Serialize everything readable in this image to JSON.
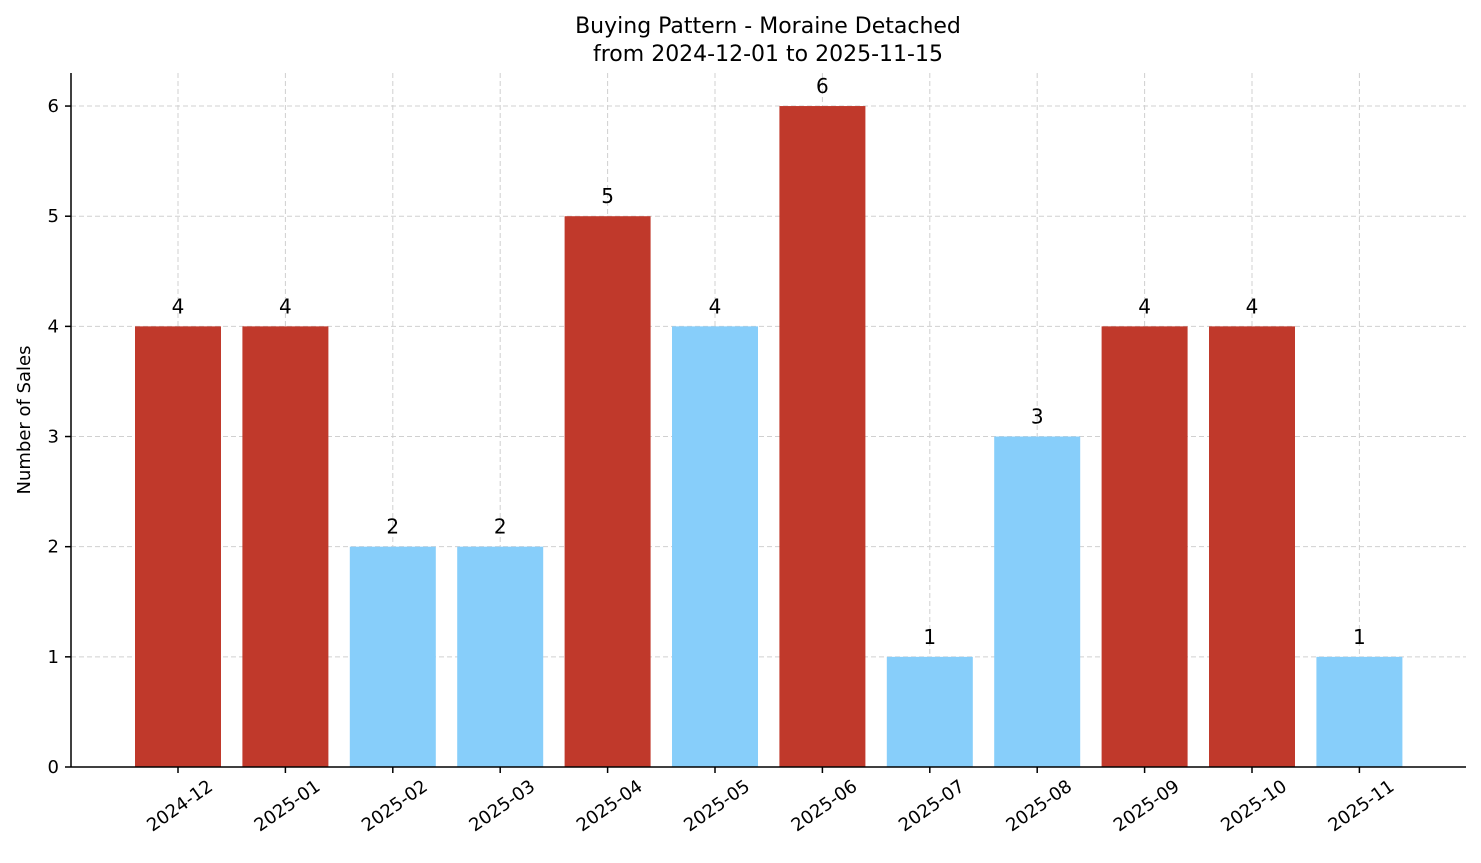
{
  "chart_data": {
    "type": "bar",
    "title": "Buying Pattern - Moraine Detached",
    "subtitle": "from 2024-12-01 to 2025-11-15",
    "xlabel": "",
    "ylabel": "Number of Sales",
    "categories": [
      "2024-12",
      "2025-01",
      "2025-02",
      "2025-03",
      "2025-04",
      "2025-05",
      "2025-06",
      "2025-07",
      "2025-08",
      "2025-09",
      "2025-10",
      "2025-11"
    ],
    "values": [
      4,
      4,
      2,
      2,
      5,
      4,
      6,
      1,
      3,
      4,
      4,
      1
    ],
    "bar_colors": [
      "#c0392b",
      "#c0392b",
      "#87cefa",
      "#87cefa",
      "#c0392b",
      "#87cefa",
      "#c0392b",
      "#87cefa",
      "#87cefa",
      "#c0392b",
      "#c0392b",
      "#87cefa"
    ],
    "ylim": [
      0,
      6.3
    ],
    "yticks": [
      0,
      1,
      2,
      3,
      4,
      5,
      6
    ],
    "grid": true,
    "legend": "none"
  }
}
